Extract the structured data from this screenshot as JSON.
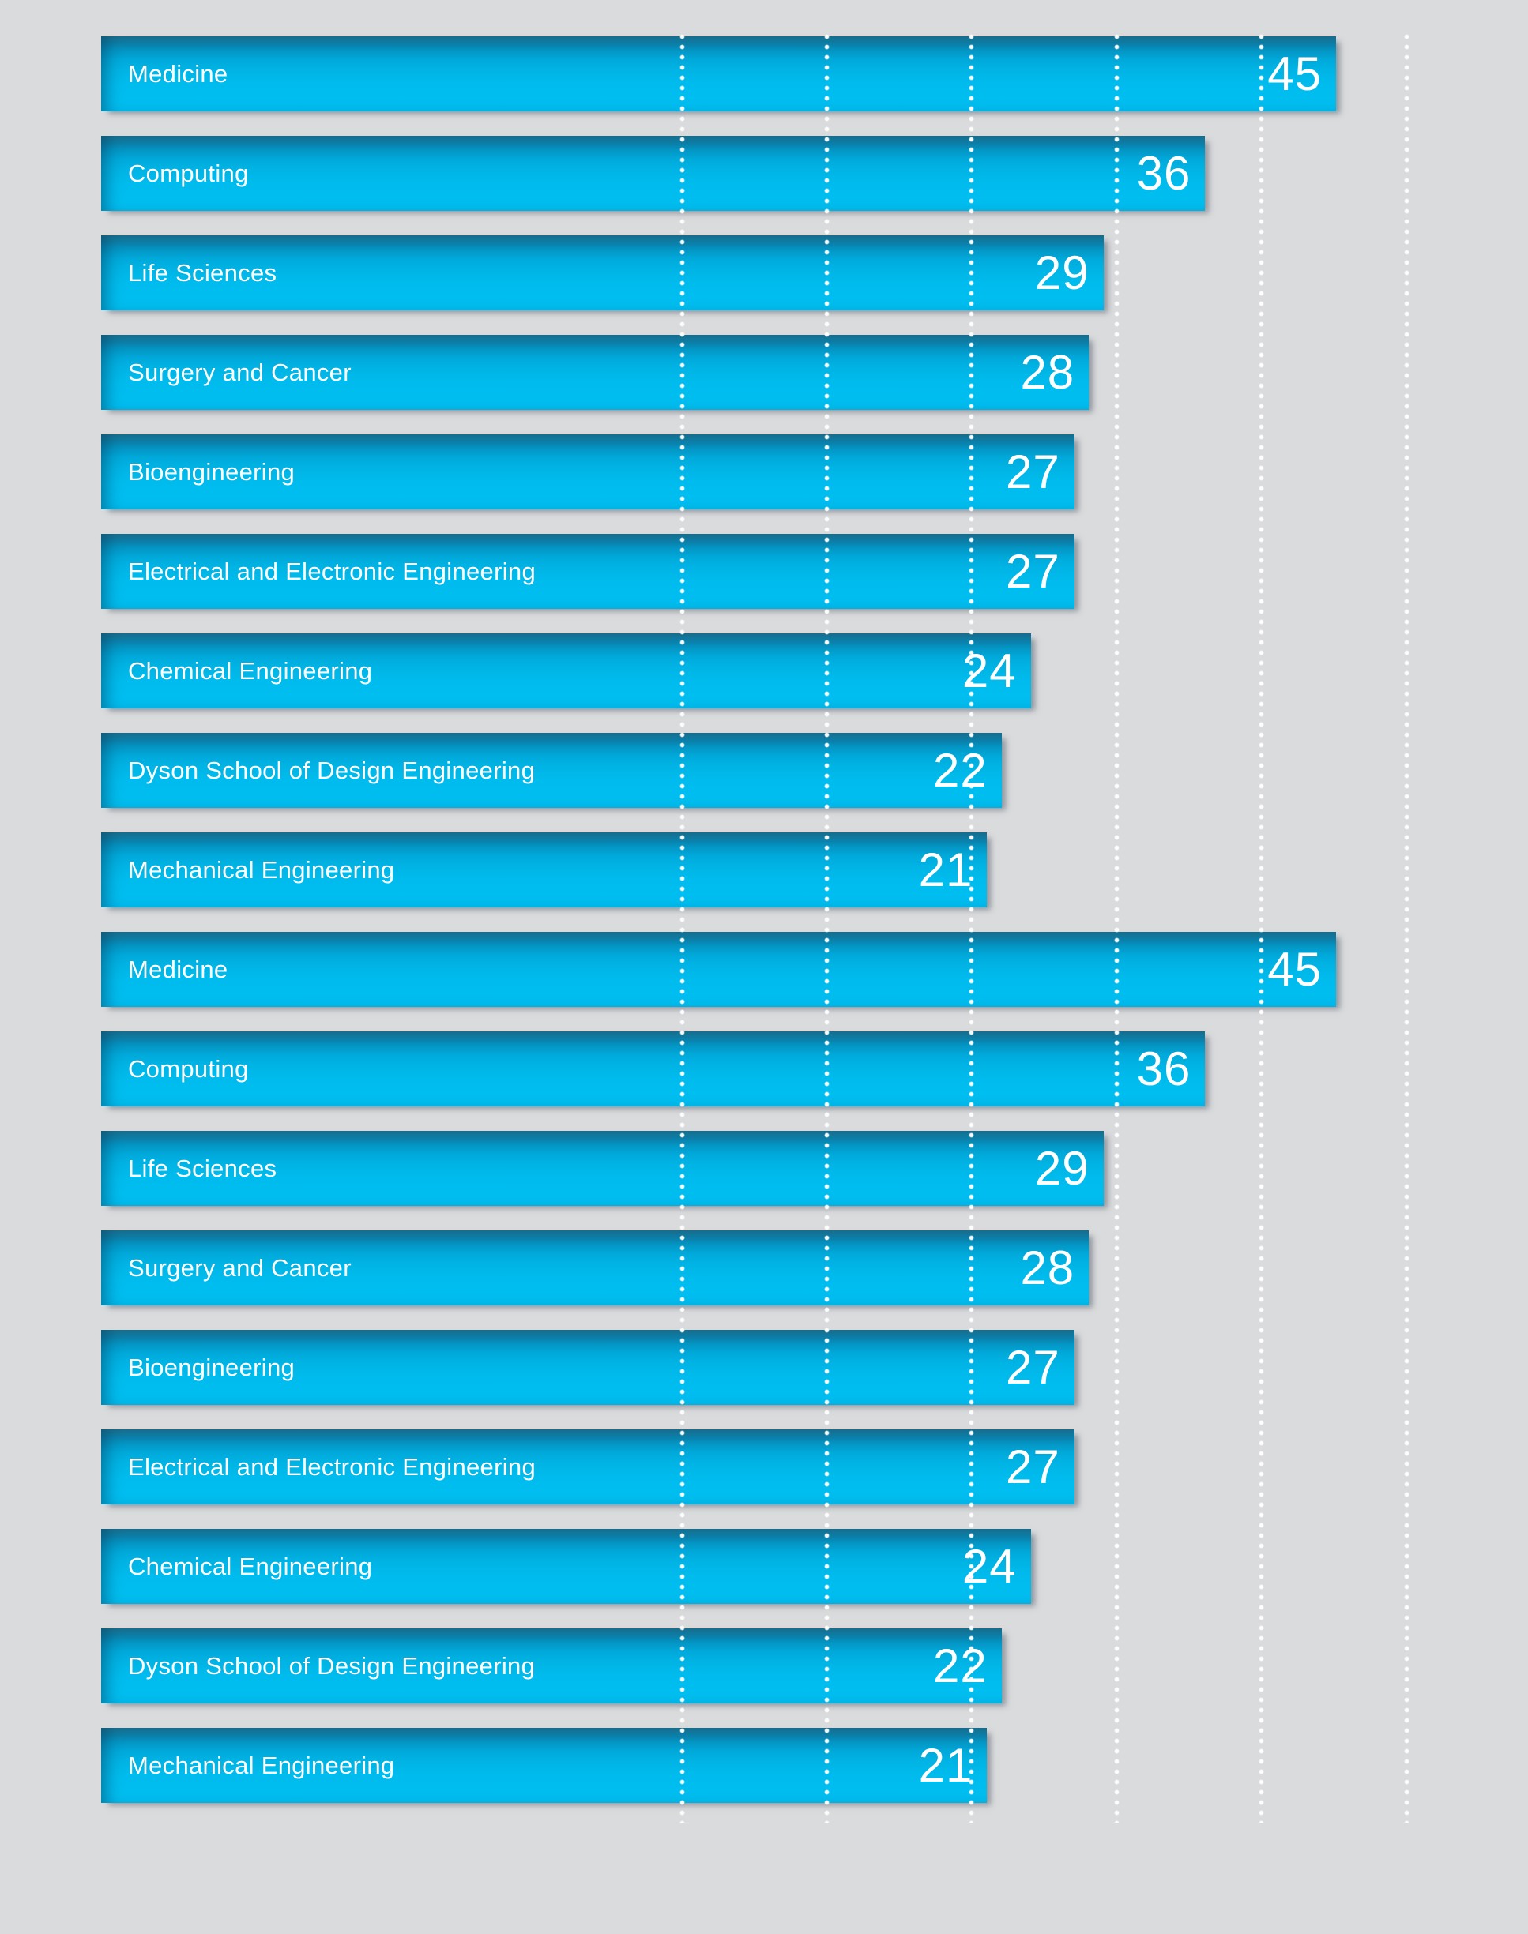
{
  "colors": {
    "background": "#dadbdd",
    "bar_gradient_top": "#1b7291",
    "bar_gradient_main": "#00b4e5",
    "bar_gradient_bottom": "#00bff2",
    "bar_text": "#ffffff",
    "gridline": "#ffffff"
  },
  "chart_data": {
    "type": "bar",
    "orientation": "horizontal",
    "title": "",
    "xlabel": "",
    "ylabel": "",
    "axis_range": [
      0,
      50
    ],
    "gridlines": [
      0,
      10,
      20,
      30,
      40,
      50
    ],
    "gridline_interval": 10,
    "gridline_style": "white-dotted-vertical",
    "legend": "none",
    "value_label_position": "inside-right-end",
    "category_label_position": "inside-left",
    "rows": [
      {
        "label": "Medicine",
        "value": 45
      },
      {
        "label": "Computing",
        "value": 36
      },
      {
        "label": "Life Sciences",
        "value": 29
      },
      {
        "label": "Surgery and Cancer",
        "value": 28
      },
      {
        "label": "Bioengineering",
        "value": 27
      },
      {
        "label": "Electrical and Electronic Engineering",
        "value": 27
      },
      {
        "label": "Chemical Engineering",
        "value": 24
      },
      {
        "label": "Dyson School of Design Engineering",
        "value": 22
      },
      {
        "label": "Mechanical Engineering",
        "value": 21
      },
      {
        "label": "Medicine",
        "value": 45
      },
      {
        "label": "Computing",
        "value": 36
      },
      {
        "label": "Life Sciences",
        "value": 29
      },
      {
        "label": "Surgery and Cancer",
        "value": 28
      },
      {
        "label": "Bioengineering",
        "value": 27
      },
      {
        "label": "Electrical and Electronic Engineering",
        "value": 27
      },
      {
        "label": "Chemical Engineering",
        "value": 24
      },
      {
        "label": "Dyson School of Design Engineering",
        "value": 22
      },
      {
        "label": "Mechanical Engineering",
        "value": 21
      }
    ]
  }
}
